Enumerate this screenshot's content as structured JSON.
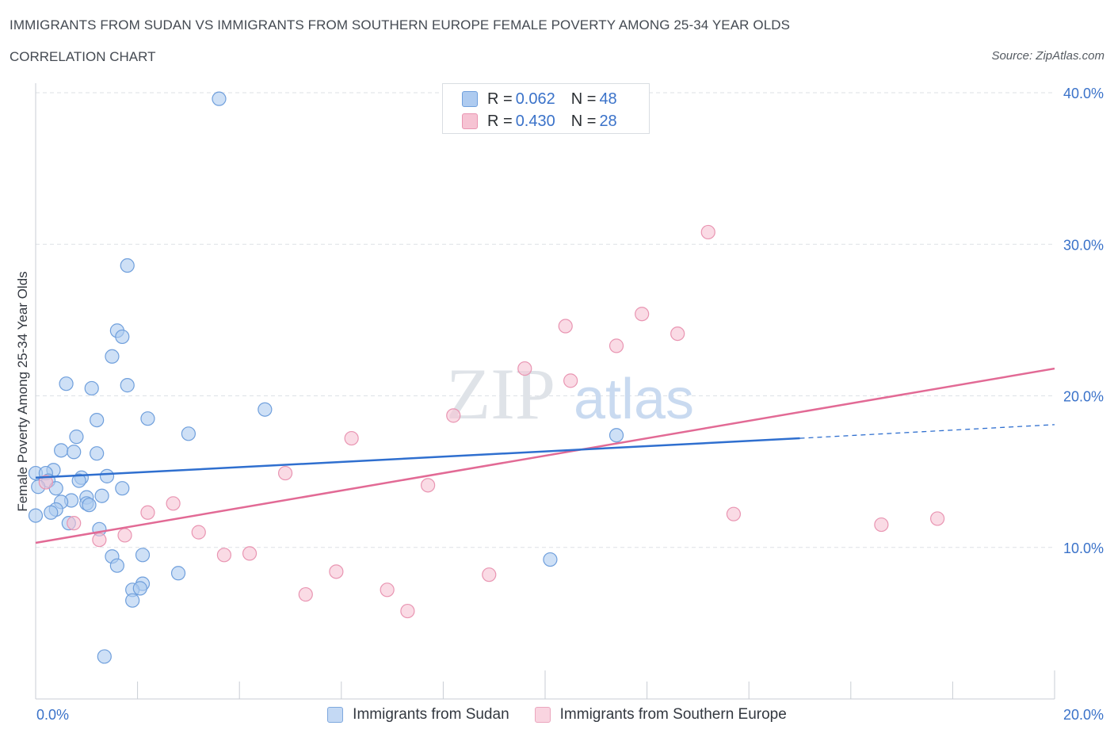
{
  "header": {
    "title": "IMMIGRANTS FROM SUDAN VS IMMIGRANTS FROM SOUTHERN EUROPE FEMALE POVERTY AMONG 25-34 YEAR OLDS",
    "subtitle": "CORRELATION CHART",
    "source": "Source: ZipAtlas.com"
  },
  "legend": {
    "sudan": {
      "r_label": "R = ",
      "r_value": "0.062",
      "n_label": "N = ",
      "n_value": "48"
    },
    "southern_europe": {
      "r_label": "R = ",
      "r_value": "0.430",
      "n_label": "N = ",
      "n_value": "28"
    }
  },
  "watermark": {
    "zip": "ZIP",
    "atlas": "atlas"
  },
  "colors": {
    "sudan_fill": "#aecbf0",
    "sudan_stroke": "#6f9fdc",
    "sudan_line": "#2f6fcf",
    "europe_fill": "#f6c3d3",
    "europe_stroke": "#e995b2",
    "europe_line": "#e26a95",
    "tick_label": "#3a72c9",
    "grid": "#dde1e6"
  },
  "chart_data": {
    "type": "scatter",
    "title": "IMMIGRANTS FROM SUDAN VS IMMIGRANTS FROM SOUTHERN EUROPE FEMALE POVERTY AMONG 25-34 YEAR OLDS",
    "xlabel": "",
    "ylabel": "Female Poverty Among 25-34 Year Olds",
    "xlim": [
      0,
      20
    ],
    "ylim": [
      0,
      40
    ],
    "x_tick_labels": [
      {
        "value": 0,
        "label": "0.0%"
      },
      {
        "value": 20,
        "label": "20.0%"
      }
    ],
    "y_tick_labels": [
      {
        "value": 10,
        "label": "10.0%"
      },
      {
        "value": 20,
        "label": "20.0%"
      },
      {
        "value": 30,
        "label": "30.0%"
      },
      {
        "value": 40,
        "label": "40.0%"
      }
    ],
    "series": [
      {
        "name": "Immigrants from Sudan",
        "points": [
          [
            3.6,
            39.6
          ],
          [
            1.8,
            28.6
          ],
          [
            1.6,
            24.3
          ],
          [
            1.7,
            23.9
          ],
          [
            1.5,
            22.6
          ],
          [
            0.6,
            20.8
          ],
          [
            1.1,
            20.5
          ],
          [
            1.8,
            20.7
          ],
          [
            4.5,
            19.1
          ],
          [
            1.2,
            18.4
          ],
          [
            2.2,
            18.5
          ],
          [
            3.0,
            17.5
          ],
          [
            0.8,
            17.3
          ],
          [
            0.5,
            16.4
          ],
          [
            0.75,
            16.3
          ],
          [
            1.2,
            16.2
          ],
          [
            0.35,
            15.1
          ],
          [
            0.0,
            14.9
          ],
          [
            0.2,
            14.9
          ],
          [
            1.4,
            14.7
          ],
          [
            0.9,
            14.6
          ],
          [
            0.85,
            14.4
          ],
          [
            0.25,
            14.4
          ],
          [
            0.05,
            14.0
          ],
          [
            0.4,
            13.9
          ],
          [
            1.7,
            13.9
          ],
          [
            1.3,
            13.4
          ],
          [
            1.0,
            13.3
          ],
          [
            0.7,
            13.1
          ],
          [
            0.5,
            13.0
          ],
          [
            1.0,
            12.9
          ],
          [
            1.05,
            12.8
          ],
          [
            0.4,
            12.5
          ],
          [
            0.3,
            12.3
          ],
          [
            0.0,
            12.1
          ],
          [
            0.65,
            11.6
          ],
          [
            1.25,
            11.2
          ],
          [
            1.5,
            9.4
          ],
          [
            2.1,
            9.5
          ],
          [
            1.6,
            8.8
          ],
          [
            2.8,
            8.3
          ],
          [
            2.1,
            7.6
          ],
          [
            1.9,
            7.2
          ],
          [
            2.05,
            7.3
          ],
          [
            1.9,
            6.5
          ],
          [
            1.35,
            2.8
          ],
          [
            11.4,
            17.4
          ],
          [
            10.1,
            9.2
          ]
        ]
      },
      {
        "name": "Immigrants from Southern Europe",
        "points": [
          [
            13.2,
            30.8
          ],
          [
            11.9,
            25.4
          ],
          [
            10.4,
            24.6
          ],
          [
            12.6,
            24.1
          ],
          [
            11.4,
            23.3
          ],
          [
            9.6,
            21.8
          ],
          [
            10.5,
            21.0
          ],
          [
            8.2,
            18.7
          ],
          [
            6.2,
            17.2
          ],
          [
            4.9,
            14.9
          ],
          [
            0.2,
            14.3
          ],
          [
            7.7,
            14.1
          ],
          [
            2.7,
            12.9
          ],
          [
            2.2,
            12.3
          ],
          [
            13.7,
            12.2
          ],
          [
            17.7,
            11.9
          ],
          [
            16.6,
            11.5
          ],
          [
            0.75,
            11.6
          ],
          [
            3.2,
            11.0
          ],
          [
            1.75,
            10.8
          ],
          [
            1.25,
            10.5
          ],
          [
            3.7,
            9.5
          ],
          [
            4.2,
            9.6
          ],
          [
            5.9,
            8.4
          ],
          [
            8.9,
            8.2
          ],
          [
            5.3,
            6.9
          ],
          [
            6.9,
            7.2
          ],
          [
            7.3,
            5.8
          ]
        ]
      }
    ],
    "trend_lines": [
      {
        "series": "Immigrants from Sudan",
        "x0": 0,
        "y0": 14.6,
        "x1": 15,
        "y1": 17.2,
        "dashed_to_x": 20,
        "dashed_to_y": 18.1
      },
      {
        "series": "Immigrants from Southern Europe",
        "x0": 0,
        "y0": 10.3,
        "x1": 20,
        "y1": 21.8
      }
    ],
    "legend_position": "top-center",
    "grid": true
  }
}
